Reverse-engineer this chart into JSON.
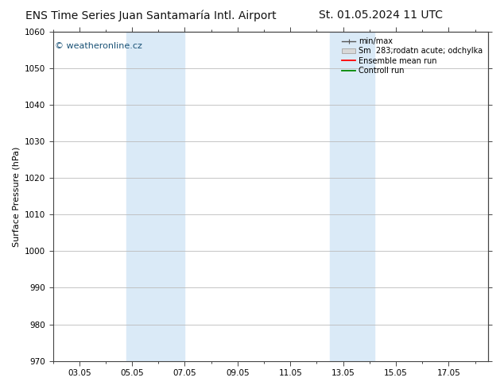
{
  "title_left": "ENS Time Series Juan Santamaría Intl. Airport",
  "title_right": "St. 01.05.2024 11 UTC",
  "ylabel": "Surface Pressure (hPa)",
  "ylim": [
    970,
    1060
  ],
  "yticks": [
    970,
    980,
    990,
    1000,
    1010,
    1020,
    1030,
    1040,
    1050,
    1060
  ],
  "xtick_positions": [
    2,
    4,
    6,
    8,
    10,
    12,
    14,
    16
  ],
  "xlabel_dates": [
    "03.05",
    "05.05",
    "07.05",
    "09.05",
    "11.05",
    "13.05",
    "15.05",
    "17.05"
  ],
  "xlim": [
    1.0,
    17.5
  ],
  "bg_color": "#ffffff",
  "plot_bg_color": "#ffffff",
  "band_color": "#daeaf7",
  "band_alpha": 1.0,
  "blue_bands": [
    {
      "start": 3.8,
      "end": 6.0
    },
    {
      "start": 11.5,
      "end": 13.2
    }
  ],
  "watermark": "© weatheronline.cz",
  "watermark_color": "#1a5276",
  "legend_labels": [
    "min/max",
    "Sm  283;rodatn acute; odchylka",
    "Ensemble mean run",
    "Controll run"
  ],
  "title_fontsize": 10,
  "axis_label_fontsize": 8,
  "tick_fontsize": 7.5,
  "grid_color": "#bbbbbb",
  "spine_color": "#444444",
  "minmax_line_color": "#555555",
  "spread_facecolor": "#d8d8d8",
  "spread_edgecolor": "#aaaaaa",
  "ensemble_mean_color": "#ff0000",
  "control_run_color": "#008800"
}
